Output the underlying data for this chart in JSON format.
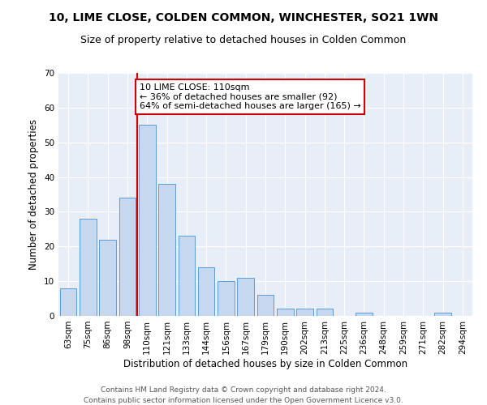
{
  "title1": "10, LIME CLOSE, COLDEN COMMON, WINCHESTER, SO21 1WN",
  "title2": "Size of property relative to detached houses in Colden Common",
  "xlabel": "Distribution of detached houses by size in Colden Common",
  "ylabel": "Number of detached properties",
  "categories": [
    "63sqm",
    "75sqm",
    "86sqm",
    "98sqm",
    "110sqm",
    "121sqm",
    "133sqm",
    "144sqm",
    "156sqm",
    "167sqm",
    "179sqm",
    "190sqm",
    "202sqm",
    "213sqm",
    "225sqm",
    "236sqm",
    "248sqm",
    "259sqm",
    "271sqm",
    "282sqm",
    "294sqm"
  ],
  "values": [
    8,
    28,
    22,
    34,
    55,
    38,
    23,
    14,
    10,
    11,
    6,
    2,
    2,
    2,
    0,
    1,
    0,
    0,
    0,
    1,
    0
  ],
  "bar_color": "#c5d8f0",
  "bar_edge_color": "#5b9bd5",
  "vline_bin_index": 4,
  "vline_color": "#cc0000",
  "ylim": [
    0,
    70
  ],
  "yticks": [
    0,
    10,
    20,
    30,
    40,
    50,
    60,
    70
  ],
  "annotation_text": "10 LIME CLOSE: 110sqm\n← 36% of detached houses are smaller (92)\n64% of semi-detached houses are larger (165) →",
  "annotation_box_color": "#ffffff",
  "annotation_box_edge_color": "#cc0000",
  "footer1": "Contains HM Land Registry data © Crown copyright and database right 2024.",
  "footer2": "Contains public sector information licensed under the Open Government Licence v3.0.",
  "background_color": "#e8eef8",
  "title1_fontsize": 10,
  "title2_fontsize": 9,
  "xlabel_fontsize": 8.5,
  "ylabel_fontsize": 8.5,
  "tick_fontsize": 7.5,
  "annotation_fontsize": 8,
  "footer_fontsize": 6.5
}
